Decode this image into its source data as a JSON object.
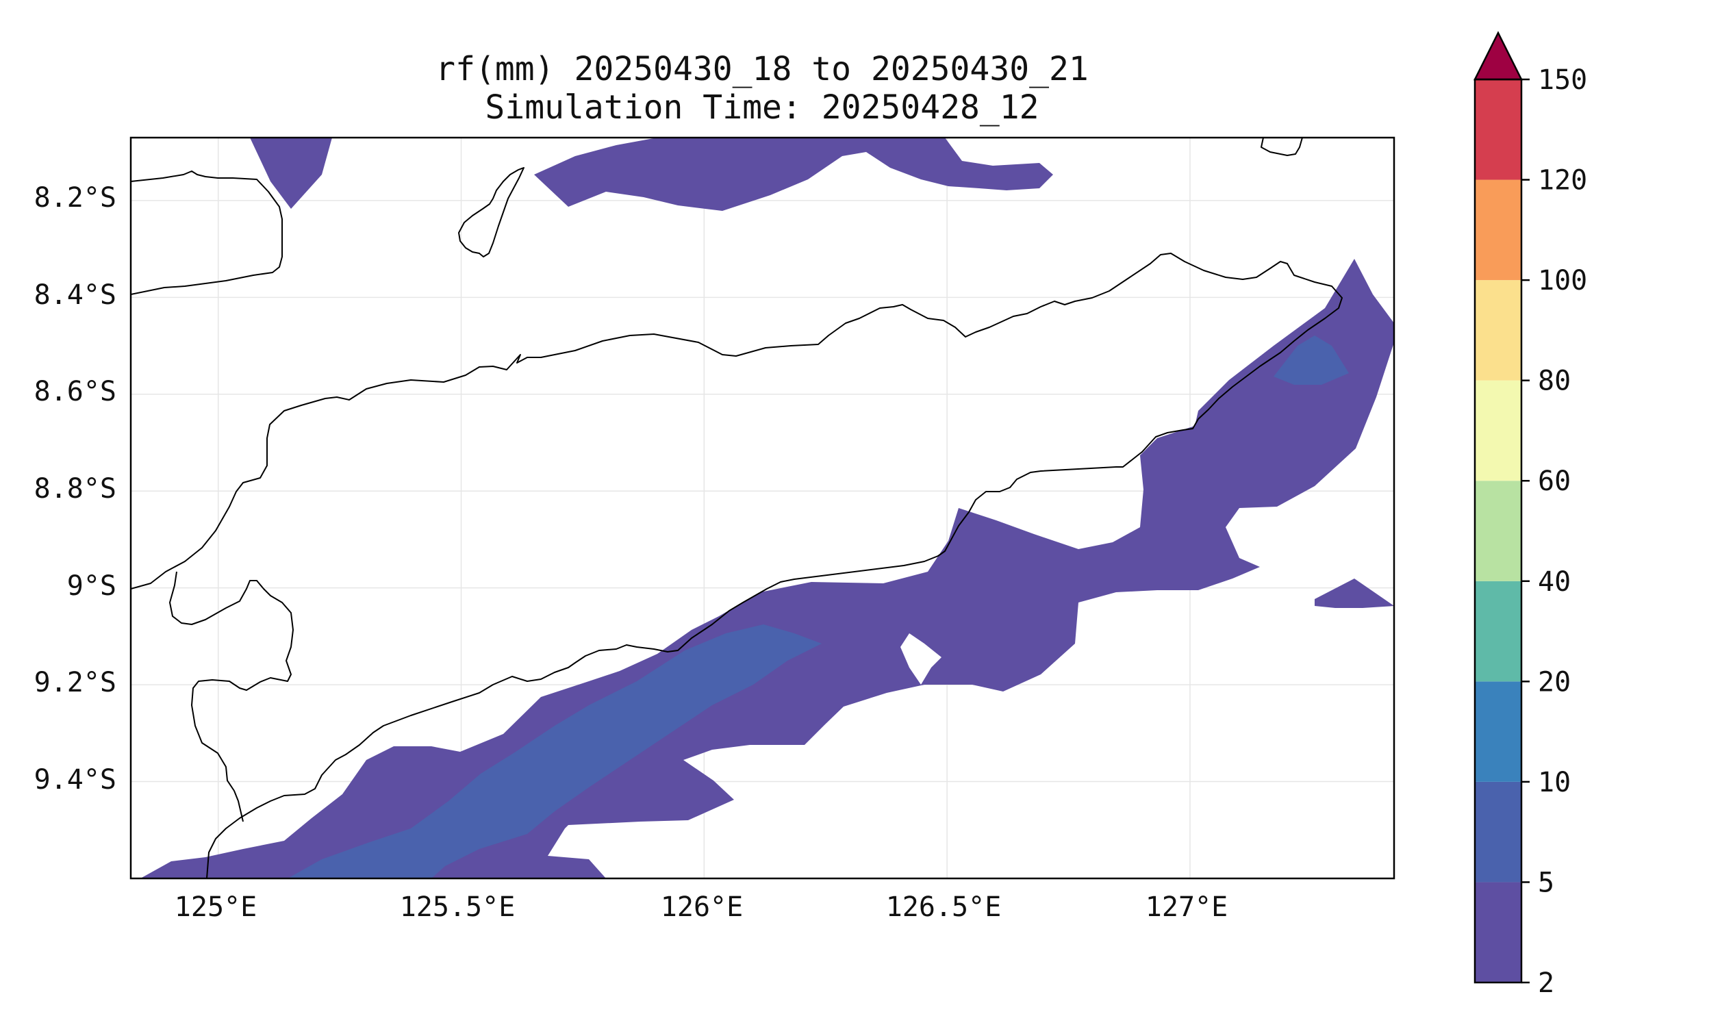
{
  "title": {
    "line1": "rf(mm) 20250430_18 to 20250430_21",
    "line2": "Simulation Time: 20250428_12"
  },
  "chart_data": {
    "type": "heatmap",
    "variable": "rf(mm)",
    "x_ticks": [
      "125°E",
      "125.5°E",
      "126°E",
      "126.5°E",
      "127°E"
    ],
    "x_tick_values": [
      125.0,
      125.5,
      126.0,
      126.5,
      127.0
    ],
    "y_ticks": [
      "8.2°S",
      "8.4°S",
      "8.6°S",
      "8.8°S",
      "9°S",
      "9.2°S",
      "9.4°S"
    ],
    "y_tick_values": [
      -8.2,
      -8.4,
      -8.6,
      -8.8,
      -9.0,
      -9.2,
      -9.4
    ],
    "xlim": [
      124.82,
      127.42
    ],
    "ylim": [
      -9.6,
      -8.07
    ],
    "grid": true,
    "colorbar": {
      "levels": [
        2,
        5,
        10,
        20,
        40,
        60,
        80,
        100,
        120,
        150
      ],
      "labels": [
        "2",
        "5",
        "10",
        "20",
        "40",
        "60",
        "80",
        "100",
        "120",
        "150"
      ],
      "colors": [
        "#5e4fa2",
        "#4a62ad",
        "#3a82bc",
        "#5fbaa8",
        "#b8e2a2",
        "#f3f9b0",
        "#fbe08d",
        "#f99c59",
        "#d53e4f"
      ],
      "extend_color": "#9e0142",
      "extend": "max"
    },
    "filled_regions": [
      {
        "level_range": "2-5",
        "description": "band along south coast and northeast coast, patches in north"
      },
      {
        "level_range": "5-10",
        "description": "core of southern band and small patch near 127.3°E, 8.55°S"
      }
    ]
  },
  "colors": {
    "level_2_5": "#5e4fa2",
    "level_5_10": "#4a62ad",
    "coastline": "#000000",
    "gridline": "#e6e6e6"
  }
}
